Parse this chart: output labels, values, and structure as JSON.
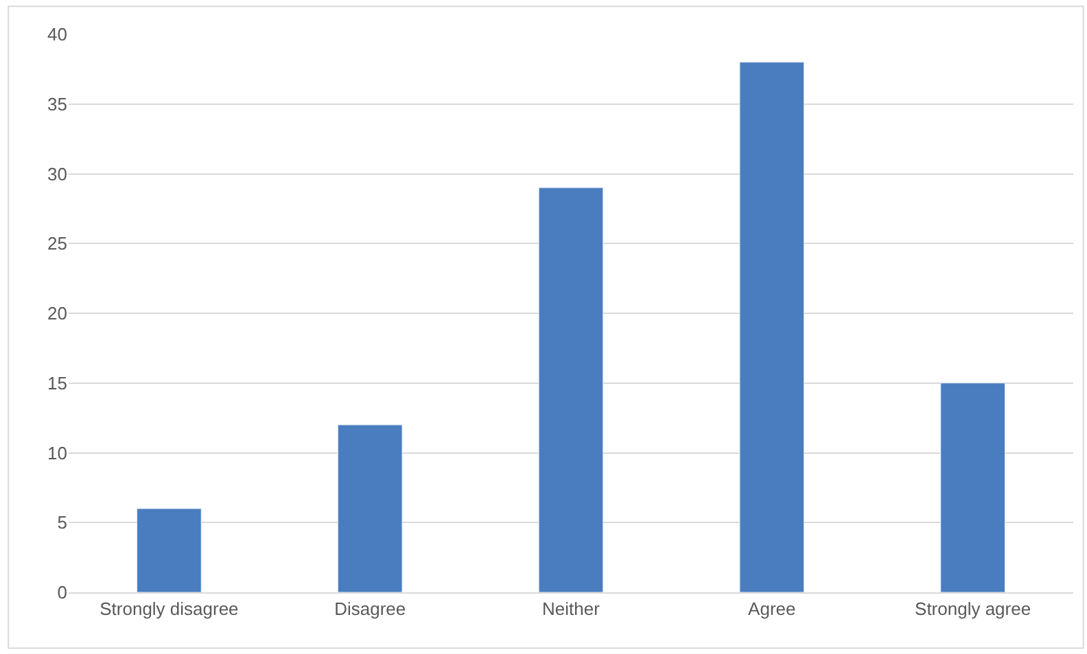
{
  "chart_data": {
    "type": "bar",
    "categories": [
      "Strongly disagree",
      "Disagree",
      "Neither",
      "Agree",
      "Strongly agree"
    ],
    "values": [
      6,
      12,
      29,
      38,
      15
    ],
    "color": "#4a7dbf",
    "ylim": [
      0,
      40
    ],
    "yticks": [
      0,
      5,
      10,
      15,
      20,
      25,
      30,
      35,
      40
    ],
    "grid": "y"
  }
}
